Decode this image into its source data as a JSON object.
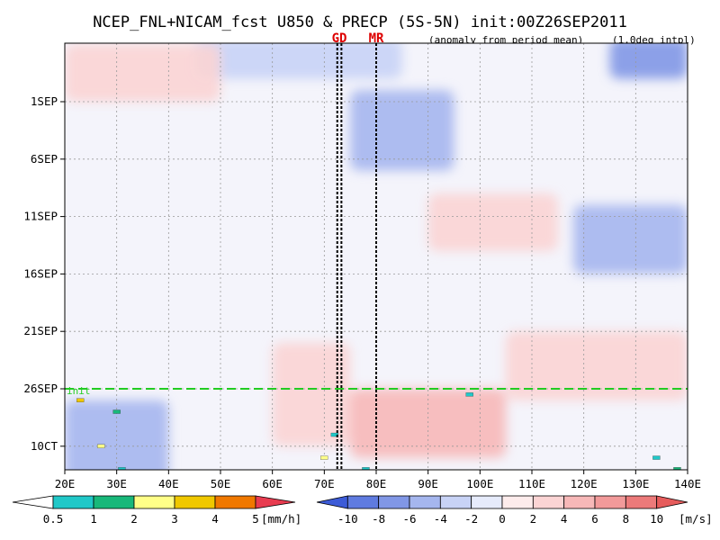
{
  "title": "NCEP_FNL+NICAM_fcst U850 & PRECP (5S-5N) init:00Z26SEP2011",
  "subtitle_left": "(anomaly from period mean)",
  "subtitle_right": "(1.0deg intpl)",
  "markers": [
    {
      "label": "GD",
      "lon": [
        72.5,
        73.3
      ],
      "color": "#dd0000"
    },
    {
      "label": "MR",
      "lon": [
        80.0
      ],
      "color": "#dd0000"
    }
  ],
  "init_line": {
    "label": "26SEP",
    "tag": "init",
    "color": "#22cc22"
  },
  "chart_data": {
    "type": "heatmap",
    "x_label": "",
    "y_label": "",
    "x_ticks": [
      "20E",
      "30E",
      "40E",
      "50E",
      "60E",
      "70E",
      "80E",
      "90E",
      "100E",
      "110E",
      "120E",
      "130E",
      "140E"
    ],
    "x_range_deg": [
      20,
      140
    ],
    "y_ticks": [
      "1SEP",
      "6SEP",
      "11SEP",
      "16SEP",
      "21SEP",
      "26SEP",
      "1OCT"
    ],
    "y_tick_labels_shown": [
      "1SEP",
      "6SEP",
      "11SEP",
      "16SEP",
      "21SEP",
      "26SEP",
      "10CT"
    ],
    "y_range_days_from_1SEP": [
      -5.5,
      13.5
    ],
    "init_day": 25,
    "grid": true,
    "u850_colorbar": {
      "unit": "[m/s]",
      "ticks": [
        "-10",
        "-8",
        "-6",
        "-4",
        "-2",
        "0",
        "2",
        "4",
        "6",
        "8",
        "10"
      ],
      "colors": [
        "#3c5bd7",
        "#5f7be0",
        "#8197e6",
        "#a5b6ee",
        "#c8d3f6",
        "#e6ebfb",
        "#fdecec",
        "#fbd4d4",
        "#f7b8b8",
        "#f29a9a",
        "#ec7a7a",
        "#e65c5c"
      ]
    },
    "precip_colorbar": {
      "unit": "[mm/h]",
      "ticks": [
        "0.5",
        "1",
        "2",
        "3",
        "4",
        "5"
      ],
      "colors": [
        "#ffffff",
        "#20c8c8",
        "#18b87a",
        "#ffff88",
        "#f0c800",
        "#f07800",
        "#e83c50"
      ]
    },
    "u850_anomaly_regions": [
      {
        "lon": [
          45,
          85
        ],
        "day": [
          -5.5,
          -2
        ],
        "value": -4
      },
      {
        "lon": [
          75,
          95
        ],
        "day": [
          -1,
          6
        ],
        "value": -5
      },
      {
        "lon": [
          125,
          140
        ],
        "day": [
          -5.5,
          -2
        ],
        "value": -7
      },
      {
        "lon": [
          118,
          140
        ],
        "day": [
          9,
          15
        ],
        "value": -6
      },
      {
        "lon": [
          20,
          40
        ],
        "day": [
          26,
          36
        ],
        "value": -6
      },
      {
        "lon": [
          60,
          75
        ],
        "day": [
          21,
          30
        ],
        "value": 3
      },
      {
        "lon": [
          75,
          105
        ],
        "day": [
          25,
          31
        ],
        "value": 4
      },
      {
        "lon": [
          105,
          140
        ],
        "day": [
          20,
          26
        ],
        "value": 3
      },
      {
        "lon": [
          90,
          115
        ],
        "day": [
          8,
          13
        ],
        "value": 2
      },
      {
        "lon": [
          20,
          50
        ],
        "day": [
          -5,
          0
        ],
        "value": 2
      }
    ],
    "precip_events": [
      {
        "lon": 23,
        "day": 26,
        "value": 4
      },
      {
        "lon": 30,
        "day": 27,
        "value": 2
      },
      {
        "lon": 27,
        "day": 30,
        "value": 3
      },
      {
        "lon": 31,
        "day": 32,
        "value": 1
      },
      {
        "lon": 24,
        "day": 33,
        "value": 2
      },
      {
        "lon": 72,
        "day": 29,
        "value": 1
      },
      {
        "lon": 70,
        "day": 31,
        "value": 3
      },
      {
        "lon": 78,
        "day": 32,
        "value": 1
      },
      {
        "lon": 77,
        "day": 34,
        "value": 2
      },
      {
        "lon": 98,
        "day": 25.5,
        "value": 1
      },
      {
        "lon": 134,
        "day": 31,
        "value": 1
      },
      {
        "lon": 138,
        "day": 32,
        "value": 2
      },
      {
        "lon": 113,
        "day": 35,
        "value": 2
      }
    ]
  }
}
